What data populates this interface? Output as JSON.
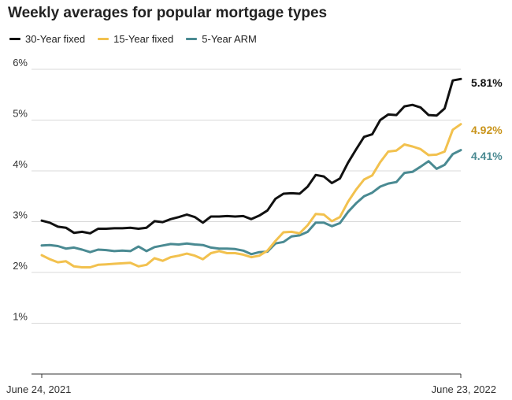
{
  "chart_data": {
    "type": "line",
    "title": "Weekly averages for popular mortgage types",
    "xlabel": "",
    "ylabel": "",
    "x_tick_labels": [
      "June 24, 2021",
      "June 23, 2022"
    ],
    "y_ticks": [
      1,
      2,
      3,
      4,
      5,
      6
    ],
    "y_tick_labels": [
      "1%",
      "2%",
      "3%",
      "4%",
      "5%",
      "6%"
    ],
    "ylim": [
      0,
      6
    ],
    "grid": "horizontal",
    "legend": "top-left",
    "series": [
      {
        "name": "30-Year fixed",
        "color": "#111111",
        "end_label": "5.81%",
        "values": [
          3.02,
          2.98,
          2.9,
          2.88,
          2.78,
          2.8,
          2.77,
          2.86,
          2.86,
          2.87,
          2.87,
          2.88,
          2.86,
          2.88,
          3.01,
          2.99,
          3.05,
          3.09,
          3.14,
          3.09,
          2.98,
          3.1,
          3.1,
          3.11,
          3.1,
          3.11,
          3.05,
          3.12,
          3.22,
          3.45,
          3.55,
          3.56,
          3.55,
          3.69,
          3.92,
          3.89,
          3.76,
          3.85,
          4.16,
          4.42,
          4.67,
          4.72,
          5.0,
          5.11,
          5.1,
          5.27,
          5.3,
          5.25,
          5.1,
          5.09,
          5.23,
          5.78,
          5.81
        ]
      },
      {
        "name": "15-Year fixed",
        "color": "#f2c14e",
        "end_label": "4.92%",
        "values": [
          2.34,
          2.26,
          2.2,
          2.22,
          2.12,
          2.1,
          2.1,
          2.15,
          2.16,
          2.17,
          2.18,
          2.19,
          2.12,
          2.15,
          2.28,
          2.23,
          2.3,
          2.33,
          2.37,
          2.33,
          2.26,
          2.38,
          2.42,
          2.38,
          2.38,
          2.35,
          2.3,
          2.33,
          2.43,
          2.62,
          2.79,
          2.8,
          2.77,
          2.93,
          3.15,
          3.14,
          3.01,
          3.09,
          3.39,
          3.63,
          3.83,
          3.91,
          4.17,
          4.38,
          4.4,
          4.52,
          4.48,
          4.43,
          4.31,
          4.32,
          4.38,
          4.81,
          4.92
        ]
      },
      {
        "name": "5-Year ARM",
        "color": "#4a8a92",
        "end_label": "4.41%",
        "values": [
          2.53,
          2.54,
          2.52,
          2.47,
          2.49,
          2.45,
          2.4,
          2.45,
          2.44,
          2.42,
          2.43,
          2.42,
          2.51,
          2.42,
          2.5,
          2.53,
          2.56,
          2.55,
          2.57,
          2.55,
          2.54,
          2.49,
          2.47,
          2.47,
          2.46,
          2.43,
          2.36,
          2.4,
          2.41,
          2.57,
          2.6,
          2.71,
          2.73,
          2.8,
          2.98,
          2.98,
          2.91,
          2.97,
          3.19,
          3.36,
          3.5,
          3.57,
          3.69,
          3.75,
          3.78,
          3.96,
          3.98,
          4.08,
          4.19,
          4.04,
          4.12,
          4.33,
          4.41
        ]
      }
    ]
  }
}
